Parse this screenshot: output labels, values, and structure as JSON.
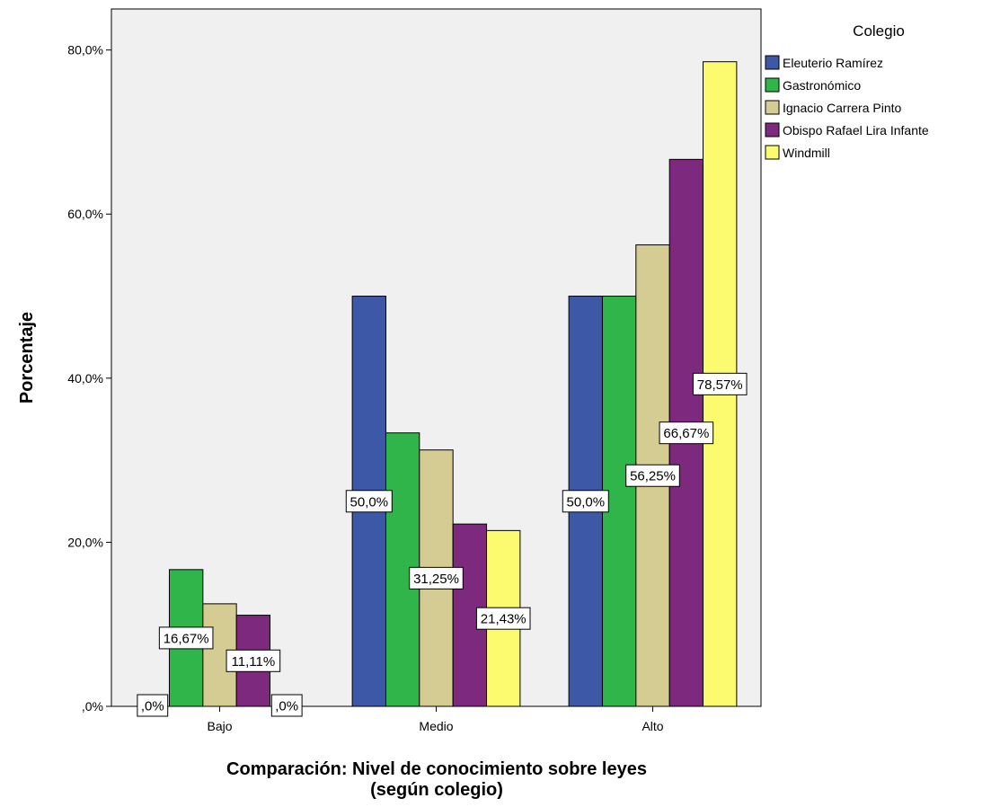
{
  "chart_data": {
    "type": "bar",
    "title": "",
    "xlabel_line1": "Comparación: Nivel de conocimiento sobre leyes",
    "xlabel_line2": "(según colegio)",
    "ylabel": "Porcentaje",
    "categories": [
      "Bajo",
      "Medio",
      "Alto"
    ],
    "ylim": [
      0,
      85
    ],
    "yticks": [
      0,
      20,
      40,
      60,
      80
    ],
    "ytick_labels": [
      ",0%",
      "20,0%",
      "40,0%",
      "60,0%",
      "80,0%"
    ],
    "grid": false,
    "legend_title": "Colegio",
    "legend_position": "right",
    "series": [
      {
        "name": "Eleuterio Ramírez",
        "color": "#3d58a7",
        "values": [
          0,
          50.0,
          50.0
        ],
        "labels": [
          ",0%",
          "50,0%",
          "50,0%"
        ]
      },
      {
        "name": "Gastronómico",
        "color": "#2fb54a",
        "values": [
          16.67,
          33.33,
          50.0
        ],
        "labels": [
          "16,67%",
          null,
          null
        ]
      },
      {
        "name": "Ignacio Carrera Pinto",
        "color": "#d4cc92",
        "values": [
          12.5,
          31.25,
          56.25
        ],
        "labels": [
          null,
          "31,25%",
          "56,25%"
        ]
      },
      {
        "name": "Obispo Rafael Lira Infante",
        "color": "#7d2a7e",
        "values": [
          11.11,
          22.22,
          66.67
        ],
        "labels": [
          "11,11%",
          null,
          "66,67%"
        ]
      },
      {
        "name": "Windmill",
        "color": "#fcfa6e",
        "values": [
          0,
          21.43,
          78.57
        ],
        "labels": [
          ",0%",
          "21,43%",
          "78,57%"
        ]
      }
    ]
  }
}
